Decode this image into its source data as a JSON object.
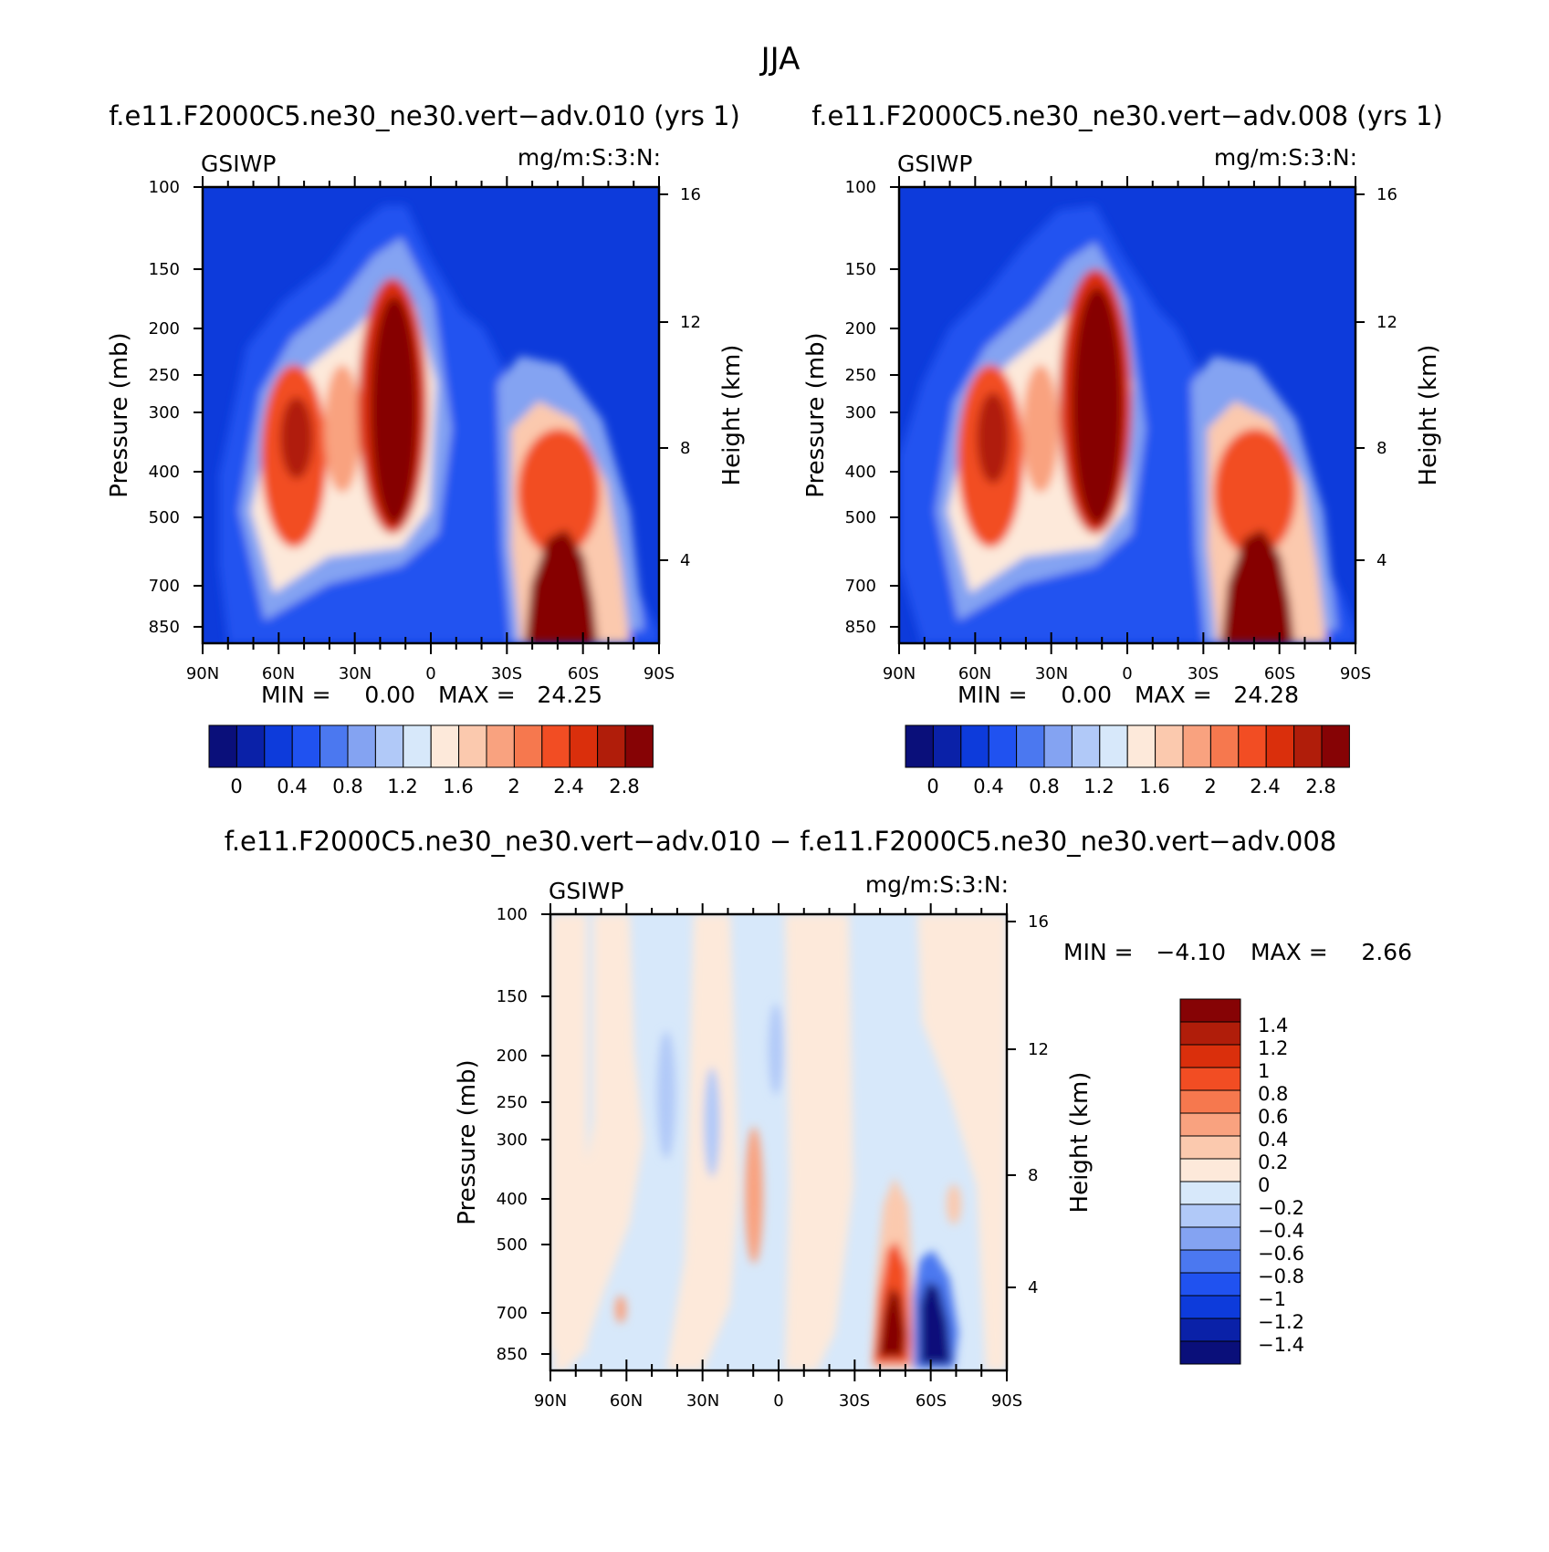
{
  "chart_data": {
    "type": "heatmap",
    "title": "JJA",
    "panels": [
      {
        "id": "p1",
        "title": "f.e11.F2000C5.ne30_ne30.vert−adv.010 (yrs 1)",
        "left_label": "GSIWP",
        "units": "mg/m:S:3:N:",
        "ylabel": "Pressure (mb)",
        "y2label": "Height (km)",
        "x_ticks": [
          "90N",
          "60N",
          "30N",
          "0",
          "30S",
          "60S",
          "90S"
        ],
        "y_ticks": [
          "100",
          "150",
          "200",
          "250",
          "300",
          "400",
          "500",
          "700",
          "850"
        ],
        "y2_ticks": [
          "16",
          "12",
          "8",
          "4"
        ],
        "min_label": "MIN =",
        "min_value": "0.00",
        "max_label": "MAX =",
        "max_value": "24.25",
        "colorbar_labels": [
          "0",
          "0.4",
          "0.8",
          "1.2",
          "1.6",
          "2",
          "2.4",
          "2.8"
        ]
      },
      {
        "id": "p2",
        "title": "f.e11.F2000C5.ne30_ne30.vert−adv.008 (yrs 1)",
        "left_label": "GSIWP",
        "units": "mg/m:S:3:N:",
        "ylabel": "Pressure (mb)",
        "y2label": "Height (km)",
        "x_ticks": [
          "90N",
          "60N",
          "30N",
          "0",
          "30S",
          "60S",
          "90S"
        ],
        "y_ticks": [
          "100",
          "150",
          "200",
          "250",
          "300",
          "400",
          "500",
          "700",
          "850"
        ],
        "y2_ticks": [
          "16",
          "12",
          "8",
          "4"
        ],
        "min_label": "MIN =",
        "min_value": "0.00",
        "max_label": "MAX =",
        "max_value": "24.28",
        "colorbar_labels": [
          "0",
          "0.4",
          "0.8",
          "1.2",
          "1.6",
          "2",
          "2.4",
          "2.8"
        ]
      },
      {
        "id": "p3",
        "title": "f.e11.F2000C5.ne30_ne30.vert−adv.010 − f.e11.F2000C5.ne30_ne30.vert−adv.008",
        "left_label": "GSIWP",
        "units": "mg/m:S:3:N:",
        "ylabel": "Pressure (mb)",
        "y2label": "Height (km)",
        "x_ticks": [
          "90N",
          "60N",
          "30N",
          "0",
          "30S",
          "60S",
          "90S"
        ],
        "y_ticks": [
          "100",
          "150",
          "200",
          "250",
          "300",
          "400",
          "500",
          "700",
          "850"
        ],
        "y2_ticks": [
          "16",
          "12",
          "8",
          "4"
        ],
        "min_label": "MIN =",
        "min_value": "−4.10",
        "max_label": "MAX =",
        "max_value": "2.66",
        "colorbar_labels": [
          "1.4",
          "1.2",
          "1",
          "0.8",
          "0.6",
          "0.4",
          "0.2",
          "0",
          "−0.2",
          "−0.4",
          "−0.6",
          "−0.8",
          "−1",
          "−1.2",
          "−1.4"
        ]
      }
    ],
    "abs_colors": [
      "#0a0f7a",
      "#0a21a8",
      "#0d3bdb",
      "#2052f0",
      "#4b78f0",
      "#84a3f2",
      "#b1c9f8",
      "#d7e8fa",
      "#fde9da",
      "#fbc9ae",
      "#f9a27f",
      "#f6784e",
      "#f24d23",
      "#da2f0c",
      "#b01d0a",
      "#860305"
    ],
    "diff_colors": [
      "#0a0f7a",
      "#0a21a8",
      "#0d3bdb",
      "#2052f0",
      "#4b78f0",
      "#84a3f2",
      "#b1c9f8",
      "#d7e8fa",
      "#fde9da",
      "#fbc9ae",
      "#f9a27f",
      "#f6784e",
      "#f24d23",
      "#da2f0c",
      "#b01d0a",
      "#860305"
    ]
  }
}
